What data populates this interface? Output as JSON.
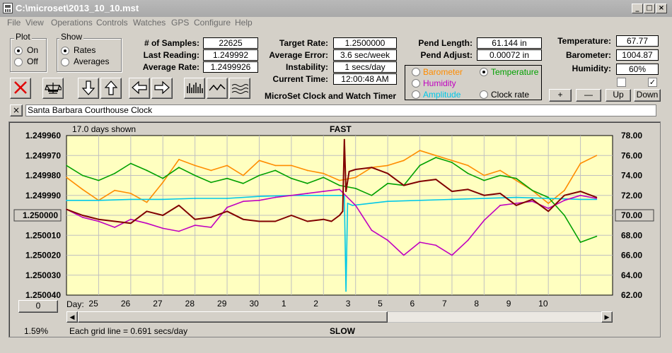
{
  "window": {
    "title": "C:\\microset\\2013_10_10.mst",
    "minimize": "_",
    "maximize": "□",
    "close": "×"
  },
  "menu": [
    "File",
    "View",
    "Operations",
    "Controls",
    "Watches",
    "GPS",
    "Configure",
    "Help"
  ],
  "plot_group": {
    "title": "Plot",
    "options": [
      "On",
      "Off"
    ],
    "selected": "On"
  },
  "show_group": {
    "title": "Show",
    "options": [
      "Rates",
      "Averages"
    ],
    "selected": "Rates"
  },
  "stats": {
    "samples_label": "# of Samples:",
    "samples": "22625",
    "last_reading_label": "Last Reading:",
    "last_reading": "1.249992",
    "average_rate_label": "Average Rate:",
    "average_rate": "1.2499926",
    "target_rate_label": "Target Rate:",
    "target_rate": "1.2500000",
    "average_error_label": "Average Error:",
    "average_error": "3.6 sec/week",
    "instability_label": "Instability:",
    "instability": "1 secs/day",
    "current_time_label": "Current Time:",
    "current_time": "12:00:48 AM",
    "pend_length_label": "Pend Length:",
    "pend_length": "61.144 in",
    "pend_adjust_label": "Pend Adjust:",
    "pend_adjust": "0.00072 in",
    "temperature_label": "Temperature:",
    "temperature": "67.77",
    "barometer_label": "Barometer:",
    "barometer": "1004.87",
    "humidity_label": "Humidity:",
    "humidity": "60%"
  },
  "app_caption": "MicroSet Clock and Watch Timer",
  "sensor_options": [
    {
      "label": "Barometer",
      "color": "#ff8c00",
      "selected": false
    },
    {
      "label": "Temperature",
      "color": "#00a000",
      "selected": true
    },
    {
      "label": "Humidity",
      "color": "#c000c0",
      "selected": false
    },
    {
      "label": "Amplitude",
      "color": "#00c8e8",
      "selected": false
    },
    {
      "label": "Clock rate",
      "color": "#000000",
      "selected": false
    }
  ],
  "scale_buttons": [
    "+",
    "—",
    "Up",
    "Down"
  ],
  "checkboxes": [
    {
      "checked": false,
      "mark": ""
    },
    {
      "checked": true,
      "mark": "✓"
    }
  ],
  "clock_name": "Santa Barbara Courthouse Clock",
  "clock_name_clear": "×",
  "plot_header": {
    "days_shown": "17.0 days shown",
    "top": "FAST",
    "bottom": "SLOW"
  },
  "footer": {
    "percent": "1.59%",
    "grid_note": "Each grid line = 0.691 secs/day",
    "zero_button": "0",
    "day_prefix": "Day:"
  },
  "icons": [
    "close-x-icon",
    "balance-scale-icon",
    "arrow-down-icon",
    "arrow-up-icon",
    "arrow-left-icon",
    "arrow-right-icon",
    "bar-graph-icon",
    "smooth-wave-icon",
    "noisy-wave-icon"
  ],
  "chart_data": {
    "type": "line",
    "title": "",
    "y_left_ticks": [
      "1.249960",
      "1.249970",
      "1.249980",
      "1.249990",
      "1.250000",
      "1.250010",
      "1.250020",
      "1.250030",
      "1.250040"
    ],
    "y_left_range": [
      1.24996,
      1.25004
    ],
    "y_left_reversed": true,
    "y_right_ticks": [
      "78.00",
      "76.00",
      "74.00",
      "72.00",
      "70.00",
      "68.00",
      "66.00",
      "64.00",
      "62.00"
    ],
    "y_right_range": [
      62,
      78
    ],
    "x_day_labels": [
      "25",
      "26",
      "27",
      "28",
      "29",
      "30",
      "1",
      "2",
      "3",
      "5",
      "6",
      "7",
      "8",
      "9",
      "10"
    ],
    "x_range_days": [
      0,
      17
    ],
    "highlight_left_tick": "1.250000",
    "highlight_right_tick": "70.00",
    "background": "#ffffc0",
    "grid": true,
    "series": [
      {
        "color": "#ff8c00",
        "x": [
          0,
          0.5,
          1,
          1.5,
          2,
          2.5,
          3,
          3.5,
          4,
          4.5,
          5,
          5.5,
          6,
          6.5,
          7,
          7.5,
          8,
          8.5,
          9,
          9.5,
          10,
          10.5,
          11,
          11.5,
          12,
          12.5,
          13,
          13.5,
          14,
          14.5,
          15,
          15.5,
          16,
          16.5
        ],
        "values": [
          73.8,
          72.6,
          71.5,
          72.5,
          72.2,
          71.3,
          73.3,
          75.6,
          75.0,
          74.5,
          75.0,
          74.0,
          75.5,
          75.0,
          75.0,
          74.5,
          74.2,
          73.5,
          73.8,
          74.8,
          75.0,
          75.5,
          76.5,
          76.0,
          75.5,
          75.0,
          74.0,
          74.5,
          73.5,
          72.5,
          71.2,
          72.5,
          75.2,
          76.0
        ]
      },
      {
        "color": "#00a000",
        "x": [
          0,
          0.5,
          1,
          1.5,
          2,
          2.5,
          3,
          3.5,
          4,
          4.5,
          5,
          5.5,
          6,
          6.5,
          7,
          7.5,
          8,
          8.5,
          9,
          9.5,
          10,
          10.5,
          11,
          11.5,
          12,
          12.5,
          13,
          13.5,
          14,
          14.5,
          15,
          15.5,
          16,
          16.5
        ],
        "values": [
          75.0,
          74.0,
          73.5,
          74.2,
          75.2,
          74.5,
          73.7,
          74.8,
          74.0,
          73.3,
          73.7,
          73.2,
          74.0,
          74.5,
          73.7,
          73.2,
          73.8,
          73.0,
          72.7,
          72.0,
          73.2,
          73.0,
          75.0,
          75.8,
          75.3,
          74.2,
          73.5,
          74.0,
          73.7,
          72.5,
          71.8,
          70.0,
          67.3,
          67.9
        ]
      },
      {
        "color": "#00c8e8",
        "x": [
          0,
          1,
          2,
          3,
          4,
          5,
          6,
          7,
          8,
          8.5,
          8.65,
          8.7,
          8.75,
          8.9,
          10,
          12,
          14,
          16,
          16.5
        ],
        "values": [
          71.5,
          71.5,
          71.6,
          71.6,
          71.7,
          71.7,
          71.9,
          72.0,
          72.0,
          72.0,
          72.0,
          62.4,
          71.2,
          71.0,
          71.4,
          71.6,
          71.8,
          71.6,
          71.6
        ]
      },
      {
        "color": "#c000c0",
        "x": [
          0,
          0.5,
          1,
          1.5,
          2,
          2.5,
          3,
          3.5,
          4,
          4.5,
          5,
          5.5,
          6,
          6.5,
          7,
          7.5,
          8,
          8.5,
          9,
          9.5,
          10,
          10.5,
          11,
          11.5,
          12,
          12.5,
          13,
          13.5,
          14,
          14.5,
          15,
          15.5,
          16,
          16.5
        ],
        "values": [
          70.6,
          69.8,
          69.4,
          68.8,
          69.6,
          69.2,
          68.7,
          68.4,
          69.0,
          68.8,
          70.8,
          71.4,
          71.5,
          71.8,
          72.0,
          72.2,
          72.4,
          72.6,
          71.0,
          68.5,
          67.5,
          66.0,
          67.3,
          67.0,
          66.0,
          67.5,
          69.5,
          71.0,
          71.2,
          71.4,
          70.7,
          71.5,
          72.0,
          71.7
        ]
      },
      {
        "color": "#800000",
        "x": [
          0,
          0.5,
          1,
          1.5,
          2,
          2.5,
          3,
          3.5,
          4,
          4.5,
          5,
          5.5,
          6,
          6.5,
          7,
          7.5,
          8,
          8.25,
          8.5,
          8.6,
          8.65,
          8.7,
          8.8,
          9,
          9.5,
          10,
          10.5,
          11,
          11.5,
          12,
          12.5,
          13,
          13.5,
          14,
          14.5,
          15,
          15.5,
          16,
          16.5
        ],
        "values": [
          1.249997,
          1.25,
          1.250002,
          1.250003,
          1.250004,
          1.249998,
          1.25,
          1.249995,
          1.250002,
          1.250001,
          1.249998,
          1.250002,
          1.250003,
          1.250003,
          1.25,
          1.250003,
          1.250002,
          1.250003,
          1.25,
          1.249998,
          1.249962,
          1.249988,
          1.249978,
          1.249977,
          1.249976,
          1.249979,
          1.249985,
          1.249983,
          1.249982,
          1.249988,
          1.249987,
          1.24999,
          1.249989,
          1.249995,
          1.249992,
          1.249998,
          1.24999,
          1.249988,
          1.249991
        ]
      }
    ]
  }
}
